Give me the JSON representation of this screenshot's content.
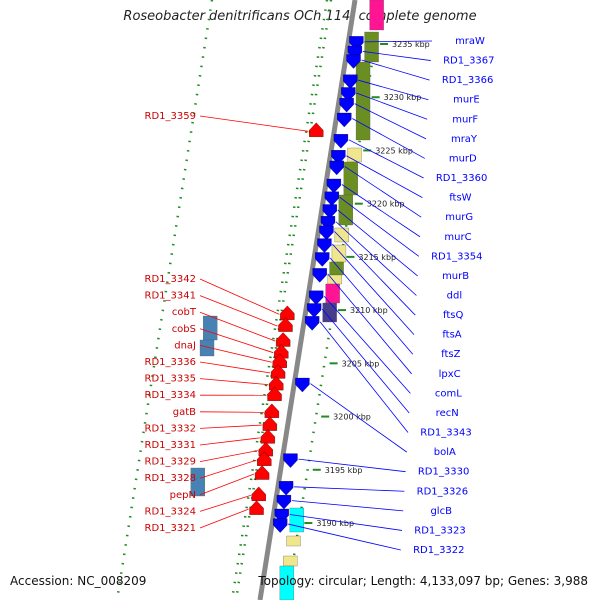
{
  "header": {
    "title": "Roseobacter denitrificans OCh 114, complete genome"
  },
  "footer": {
    "accession": "Accession: NC_008209",
    "summary": "Topology: circular; Length: 4,133,097 bp; Genes: 3,988"
  },
  "colors": {
    "forward": "#ff0000",
    "reverse": "#0000ff",
    "ring_olive": "#6b8e23",
    "ring_khaki": "#f0e68c",
    "ring_steel": "#4682b4",
    "ring_pink": "#ff1493",
    "ring_cyan": "#00ffff",
    "ring_navy": "#483d8b",
    "gc_dots": "#228b22",
    "backbone": "#888888"
  },
  "scale": {
    "unit": "kbp",
    "ticks": [
      {
        "kbp": 3235,
        "label": "3235 kbp"
      },
      {
        "kbp": 3230,
        "label": "3230 kbp"
      },
      {
        "kbp": 3225,
        "label": "3225 kbp"
      },
      {
        "kbp": 3220,
        "label": "3220 kbp"
      },
      {
        "kbp": 3215,
        "label": "3215 kbp"
      },
      {
        "kbp": 3210,
        "label": "3210 kbp"
      },
      {
        "kbp": 3205,
        "label": "3205 kbp"
      },
      {
        "kbp": 3200,
        "label": "3200 kbp"
      },
      {
        "kbp": 3195,
        "label": "3195 kbp"
      },
      {
        "kbp": 3190,
        "label": "3190 kbp"
      }
    ]
  },
  "genes_reverse": [
    {
      "label": "mraW",
      "kbp": 3235.2
    },
    {
      "label": "RD1_3367",
      "kbp": 3234.3
    },
    {
      "label": "RD1_3366",
      "kbp": 3233.5
    },
    {
      "label": "murE",
      "kbp": 3231.6
    },
    {
      "label": "murF",
      "kbp": 3230.4
    },
    {
      "label": "mraY",
      "kbp": 3229.4
    },
    {
      "label": "murD",
      "kbp": 3228.0
    },
    {
      "label": "RD1_3360",
      "kbp": 3226.0
    },
    {
      "label": "ftsW",
      "kbp": 3224.5
    },
    {
      "label": "murG",
      "kbp": 3223.5
    },
    {
      "label": "murC",
      "kbp": 3221.8
    },
    {
      "label": "RD1_3354",
      "kbp": 3220.6
    },
    {
      "label": "murB",
      "kbp": 3219.4
    },
    {
      "label": "ddl",
      "kbp": 3218.3
    },
    {
      "label": "ftsQ",
      "kbp": 3217.4
    },
    {
      "label": "ftsA",
      "kbp": 3216.2
    },
    {
      "label": "ftsZ",
      "kbp": 3214.9
    },
    {
      "label": "lpxC",
      "kbp": 3213.4
    },
    {
      "label": "comL",
      "kbp": 3211.3
    },
    {
      "label": "recN",
      "kbp": 3210.1
    },
    {
      "label": "RD1_3343",
      "kbp": 3208.9
    },
    {
      "label": "bolA",
      "kbp": 3203.1
    },
    {
      "label": "RD1_3330",
      "kbp": 3196.0
    },
    {
      "label": "RD1_3326",
      "kbp": 3193.4
    },
    {
      "label": "glcB",
      "kbp": 3192.1
    },
    {
      "label": "RD1_3323",
      "kbp": 3190.8
    },
    {
      "label": "RD1_3322",
      "kbp": 3189.9
    }
  ],
  "genes_forward": [
    {
      "label": "RD1_3359",
      "kbp": 3226.8
    },
    {
      "label": "RD1_3342",
      "kbp": 3209.6
    },
    {
      "label": "RD1_3341",
      "kbp": 3208.5
    },
    {
      "label": "cobT",
      "kbp": 3207.1
    },
    {
      "label": "cobS",
      "kbp": 3206.0
    },
    {
      "label": "dnaJ",
      "kbp": 3205.1
    },
    {
      "label": "RD1_3336",
      "kbp": 3204.1
    },
    {
      "label": "RD1_3335",
      "kbp": 3203.0
    },
    {
      "label": "RD1_3334",
      "kbp": 3202.0
    },
    {
      "label": "gatB",
      "kbp": 3200.4
    },
    {
      "label": "RD1_3332",
      "kbp": 3199.2
    },
    {
      "label": "RD1_3331",
      "kbp": 3198.0
    },
    {
      "label": "RD1_3329",
      "kbp": 3196.8
    },
    {
      "label": "RD1_3328",
      "kbp": 3195.9
    },
    {
      "label": "pepN",
      "kbp": 3194.6
    },
    {
      "label": "RD1_3324",
      "kbp": 3192.6
    },
    {
      "label": "RD1_3321",
      "kbp": 3191.3
    }
  ]
}
